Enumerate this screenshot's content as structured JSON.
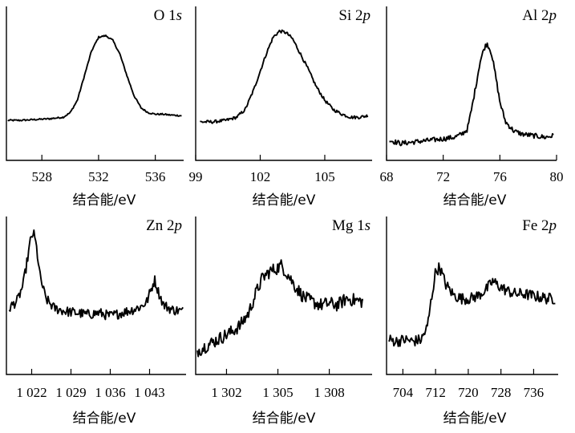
{
  "chart_data": [
    {
      "type": "line",
      "title": "O 1",
      "title_italic": "s",
      "xlabel": "结合能/eV",
      "xlim": [
        525.5,
        538.0
      ],
      "xticks": [
        528,
        532,
        536
      ],
      "xtick_labels": [
        "528",
        "532",
        "536"
      ],
      "ylim": [
        0,
        100
      ],
      "series": [
        {
          "x": [
            525.6,
            526.5,
            527.5,
            528.5,
            529.5,
            530.0,
            530.5,
            531.0,
            531.5,
            532.0,
            532.5,
            533.0,
            533.5,
            534.0,
            534.5,
            535.0,
            535.5,
            536.0,
            536.5,
            537.0,
            537.9
          ],
          "y": [
            26,
            26,
            26.5,
            27,
            28,
            31,
            39,
            55,
            71,
            80,
            81,
            78,
            69,
            55,
            42,
            34,
            31,
            30,
            30,
            29.5,
            29
          ]
        }
      ]
    },
    {
      "type": "line",
      "title": "Si 2",
      "title_italic": "p",
      "xlabel": "结合能/eV",
      "xlim": [
        99,
        107.2
      ],
      "xticks": [
        99,
        102,
        105
      ],
      "xtick_labels": [
        "99",
        "102",
        "105"
      ],
      "ylim": [
        0,
        100
      ],
      "series": [
        {
          "x": [
            99.2,
            99.8,
            100.4,
            100.9,
            101.3,
            101.7,
            102.0,
            102.3,
            102.6,
            102.9,
            103.2,
            103.5,
            103.8,
            104.2,
            104.6,
            105.0,
            105.4,
            105.8,
            106.2,
            106.6,
            107.0
          ],
          "y": [
            25,
            25,
            26,
            28,
            33,
            46,
            58,
            70,
            80,
            84,
            83,
            79,
            71,
            60,
            48,
            39,
            33,
            30,
            28,
            28,
            29
          ]
        }
      ]
    },
    {
      "type": "line",
      "title": "Al 2",
      "title_italic": "p",
      "xlabel": "结合能/eV",
      "xlim": [
        68,
        80
      ],
      "xticks": [
        68,
        72,
        76,
        80
      ],
      "xtick_labels": [
        "68",
        "72",
        "76",
        "80"
      ],
      "ylim": [
        0,
        100
      ],
      "series": [
        {
          "x": [
            68.2,
            69.0,
            70.0,
            71.0,
            72.0,
            72.8,
            73.3,
            73.7,
            74.0,
            74.3,
            74.6,
            74.9,
            75.1,
            75.4,
            75.7,
            76.0,
            76.4,
            77.0,
            77.6,
            78.4,
            79.2,
            79.8
          ],
          "y": [
            13,
            11,
            12,
            13,
            14,
            15,
            17,
            20,
            33,
            48,
            64,
            73,
            76,
            70,
            55,
            38,
            25,
            19,
            17,
            16,
            15,
            16
          ]
        }
      ]
    },
    {
      "type": "line",
      "title": "Zn 2",
      "title_italic": "p",
      "xlabel": "结合能/eV",
      "xlim": [
        1017.5,
        1049.5
      ],
      "xticks": [
        1022,
        1029,
        1036,
        1043
      ],
      "xtick_labels": [
        "1 022",
        "1 029",
        "1 036",
        "1 043"
      ],
      "ylim": [
        0,
        100
      ],
      "series": [
        {
          "x": [
            1018.0,
            1019.5,
            1020.5,
            1021.2,
            1021.8,
            1022.3,
            1022.8,
            1023.5,
            1024.5,
            1026.0,
            1028.0,
            1030.0,
            1032.0,
            1034.0,
            1036.0,
            1038.0,
            1040.0,
            1041.5,
            1042.5,
            1043.3,
            1043.9,
            1044.6,
            1045.5,
            1047.0,
            1049.0
          ],
          "y": [
            42,
            47,
            57,
            72,
            85,
            90,
            82,
            62,
            48,
            42,
            40,
            39,
            38,
            39,
            37,
            39,
            41,
            43,
            46,
            54,
            60,
            52,
            44,
            41,
            40
          ]
        }
      ]
    },
    {
      "type": "line",
      "title": "Mg 1",
      "title_italic": "s",
      "xlabel": "结合能/eV",
      "xlim": [
        1300.2,
        1310.5
      ],
      "xticks": [
        1302,
        1305,
        1308
      ],
      "xtick_labels": [
        "1 302",
        "1 305",
        "1 308"
      ],
      "ylim": [
        0,
        100
      ],
      "series": [
        {
          "x": [
            1300.3,
            1300.8,
            1301.3,
            1301.8,
            1302.3,
            1302.8,
            1303.3,
            1303.7,
            1304.1,
            1304.5,
            1304.9,
            1305.2,
            1305.6,
            1306.0,
            1306.5,
            1307.0,
            1307.5,
            1308.0,
            1308.5,
            1309.0,
            1309.5,
            1310.0
          ],
          "y": [
            15,
            18,
            21,
            24,
            27,
            31,
            39,
            51,
            61,
            65,
            67,
            69,
            63,
            56,
            49,
            46,
            44,
            45,
            44,
            48,
            47,
            46
          ]
        }
      ]
    },
    {
      "type": "line",
      "title": "Fe 2",
      "title_italic": "p",
      "xlabel": "结合能/eV",
      "xlim": [
        700,
        742
      ],
      "xticks": [
        704,
        712,
        720,
        728,
        736
      ],
      "xtick_labels": [
        "704",
        "712",
        "720",
        "728",
        "736"
      ],
      "ylim": [
        0,
        100
      ],
      "series": [
        {
          "x": [
            700.5,
            702.5,
            704.5,
            706.5,
            708.5,
            710.0,
            711.0,
            712.0,
            713.0,
            714.5,
            716.5,
            718.5,
            720.5,
            722.5,
            724.5,
            726.0,
            727.5,
            729.5,
            731.5,
            733.5,
            735.5,
            737.5,
            739.5,
            741.5
          ],
          "y": [
            22,
            21,
            22,
            21,
            22,
            30,
            48,
            65,
            68,
            57,
            50,
            48,
            48,
            50,
            54,
            59,
            56,
            53,
            51,
            51,
            50,
            49,
            48,
            48
          ]
        }
      ]
    }
  ]
}
